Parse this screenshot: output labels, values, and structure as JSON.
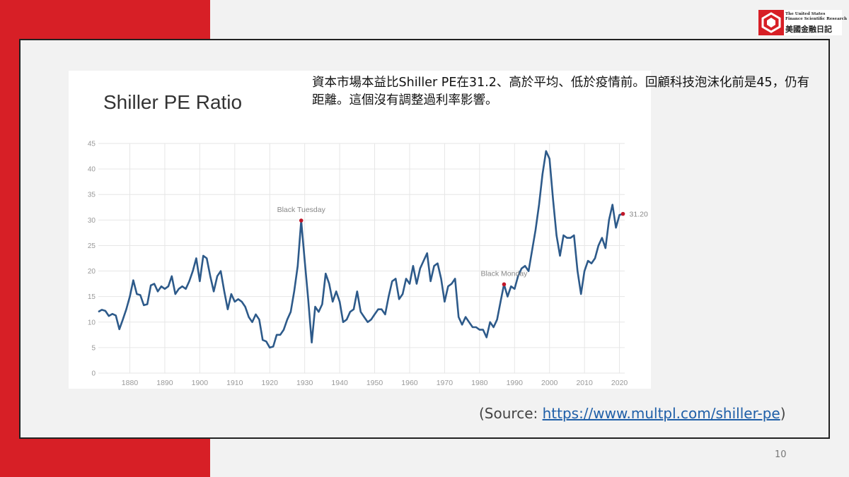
{
  "slide": {
    "note": "資本市場本益比Shiller PE在31.2、高於平均、低於疫情前。回顧科技泡沫化前是45，仍有距離。這個沒有調整過利率影響。",
    "source_prefix": "(Source: ",
    "source_link": "https://www.multpl.com/shiller-pe",
    "source_suffix": ")",
    "page_number": "10"
  },
  "logo": {
    "english": "The United States\nFinance Scientific Research",
    "chinese": "美國金融日記"
  },
  "colors": {
    "line": "#2d5a8a",
    "marker": "#c0182a",
    "band": "#d71f26",
    "grid": "#e6e6e6"
  },
  "chart_data": {
    "type": "line",
    "title": "Shiller PE Ratio",
    "xlabel": "",
    "ylabel": "",
    "xlim": [
      1871,
      2021.5
    ],
    "ylim": [
      0,
      45
    ],
    "grid": true,
    "x_ticks": [
      1880,
      1890,
      1900,
      1910,
      1920,
      1930,
      1940,
      1950,
      1960,
      1970,
      1980,
      1990,
      2000,
      2010,
      2020
    ],
    "y_ticks": [
      0,
      5,
      10,
      15,
      20,
      25,
      30,
      35,
      40,
      45
    ],
    "series": [
      {
        "values": [
          [
            1871,
            12.0
          ],
          [
            1872,
            12.4
          ],
          [
            1873,
            12.2
          ],
          [
            1874,
            11.2
          ],
          [
            1875,
            11.6
          ],
          [
            1876,
            11.3
          ],
          [
            1877,
            8.6
          ],
          [
            1878,
            10.5
          ],
          [
            1879,
            12.5
          ],
          [
            1880,
            15.0
          ],
          [
            1881,
            18.2
          ],
          [
            1882,
            15.5
          ],
          [
            1883,
            15.3
          ],
          [
            1884,
            13.3
          ],
          [
            1885,
            13.5
          ],
          [
            1886,
            17.2
          ],
          [
            1887,
            17.5
          ],
          [
            1888,
            16.0
          ],
          [
            1889,
            17.0
          ],
          [
            1890,
            16.5
          ],
          [
            1891,
            17.0
          ],
          [
            1892,
            19.0
          ],
          [
            1893,
            15.5
          ],
          [
            1894,
            16.5
          ],
          [
            1895,
            17.0
          ],
          [
            1896,
            16.5
          ],
          [
            1897,
            18.0
          ],
          [
            1898,
            20.0
          ],
          [
            1899,
            22.5
          ],
          [
            1900,
            18.0
          ],
          [
            1901,
            23.0
          ],
          [
            1902,
            22.5
          ],
          [
            1903,
            19.0
          ],
          [
            1904,
            16.0
          ],
          [
            1905,
            19.0
          ],
          [
            1906,
            20.0
          ],
          [
            1907,
            16.0
          ],
          [
            1908,
            12.5
          ],
          [
            1909,
            15.5
          ],
          [
            1910,
            14.0
          ],
          [
            1911,
            14.5
          ],
          [
            1912,
            14.0
          ],
          [
            1913,
            13.0
          ],
          [
            1914,
            11.0
          ],
          [
            1915,
            10.0
          ],
          [
            1916,
            11.5
          ],
          [
            1917,
            10.5
          ],
          [
            1918,
            6.5
          ],
          [
            1919,
            6.2
          ],
          [
            1920,
            5.0
          ],
          [
            1921,
            5.2
          ],
          [
            1922,
            7.5
          ],
          [
            1923,
            7.5
          ],
          [
            1924,
            8.5
          ],
          [
            1925,
            10.5
          ],
          [
            1926,
            12.0
          ],
          [
            1927,
            16.0
          ],
          [
            1928,
            21.0
          ],
          [
            1929,
            29.9
          ],
          [
            1930,
            22.0
          ],
          [
            1931,
            14.5
          ],
          [
            1932,
            6.0
          ],
          [
            1933,
            13.0
          ],
          [
            1934,
            12.0
          ],
          [
            1935,
            13.5
          ],
          [
            1936,
            19.5
          ],
          [
            1937,
            17.5
          ],
          [
            1938,
            14.0
          ],
          [
            1939,
            16.0
          ],
          [
            1940,
            14.0
          ],
          [
            1941,
            10.0
          ],
          [
            1942,
            10.5
          ],
          [
            1943,
            12.0
          ],
          [
            1944,
            12.5
          ],
          [
            1945,
            16.0
          ],
          [
            1946,
            12.0
          ],
          [
            1947,
            11.0
          ],
          [
            1948,
            10.0
          ],
          [
            1949,
            10.5
          ],
          [
            1950,
            11.5
          ],
          [
            1951,
            12.5
          ],
          [
            1952,
            12.5
          ],
          [
            1953,
            11.5
          ],
          [
            1954,
            15.0
          ],
          [
            1955,
            18.0
          ],
          [
            1956,
            18.5
          ],
          [
            1957,
            14.5
          ],
          [
            1958,
            15.5
          ],
          [
            1959,
            18.5
          ],
          [
            1960,
            17.5
          ],
          [
            1961,
            21.0
          ],
          [
            1962,
            17.5
          ],
          [
            1963,
            20.5
          ],
          [
            1964,
            22.0
          ],
          [
            1965,
            23.5
          ],
          [
            1966,
            18.0
          ],
          [
            1967,
            21.0
          ],
          [
            1968,
            21.5
          ],
          [
            1969,
            18.5
          ],
          [
            1970,
            14.0
          ],
          [
            1971,
            17.0
          ],
          [
            1972,
            17.5
          ],
          [
            1973,
            18.5
          ],
          [
            1974,
            11.0
          ],
          [
            1975,
            9.5
          ],
          [
            1976,
            11.0
          ],
          [
            1977,
            10.0
          ],
          [
            1978,
            9.0
          ],
          [
            1979,
            9.0
          ],
          [
            1980,
            8.5
          ],
          [
            1981,
            8.5
          ],
          [
            1982,
            7.0
          ],
          [
            1983,
            10.0
          ],
          [
            1984,
            9.0
          ],
          [
            1985,
            10.5
          ],
          [
            1986,
            14.0
          ],
          [
            1987,
            17.4
          ],
          [
            1988,
            15.0
          ],
          [
            1989,
            17.0
          ],
          [
            1990,
            16.5
          ],
          [
            1991,
            19.0
          ],
          [
            1992,
            20.5
          ],
          [
            1993,
            21.0
          ],
          [
            1994,
            20.0
          ],
          [
            1995,
            24.0
          ],
          [
            1996,
            28.0
          ],
          [
            1997,
            33.0
          ],
          [
            1998,
            39.0
          ],
          [
            1999,
            43.5
          ],
          [
            2000,
            42.0
          ],
          [
            2001,
            34.0
          ],
          [
            2002,
            27.0
          ],
          [
            2003,
            23.0
          ],
          [
            2004,
            27.0
          ],
          [
            2005,
            26.5
          ],
          [
            2006,
            26.5
          ],
          [
            2007,
            27.0
          ],
          [
            2008,
            20.0
          ],
          [
            2009,
            15.5
          ],
          [
            2010,
            20.0
          ],
          [
            2011,
            22.0
          ],
          [
            2012,
            21.5
          ],
          [
            2013,
            22.5
          ],
          [
            2014,
            25.0
          ],
          [
            2015,
            26.5
          ],
          [
            2016,
            24.5
          ],
          [
            2017,
            30.0
          ],
          [
            2018,
            33.0
          ],
          [
            2019,
            28.5
          ],
          [
            2020,
            31.0
          ],
          [
            2021,
            31.2
          ]
        ]
      }
    ],
    "annotations": [
      {
        "label": "Black Tuesday",
        "x": 1929,
        "y": 29.9
      },
      {
        "label": "Black Monday",
        "x": 1987,
        "y": 17.4
      },
      {
        "label": "31.20",
        "x": 2021,
        "y": 31.2
      }
    ]
  }
}
